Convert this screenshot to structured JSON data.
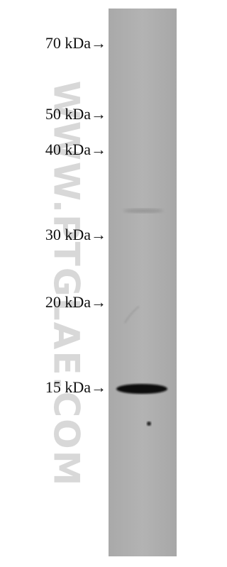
{
  "markers": [
    "70 kDa→",
    "50 kDa→",
    "40 kDa→",
    "30 kDa→",
    "20 kDa→",
    "15 kDa→"
  ],
  "watermark": "WWW.PTGLAE.COM"
}
